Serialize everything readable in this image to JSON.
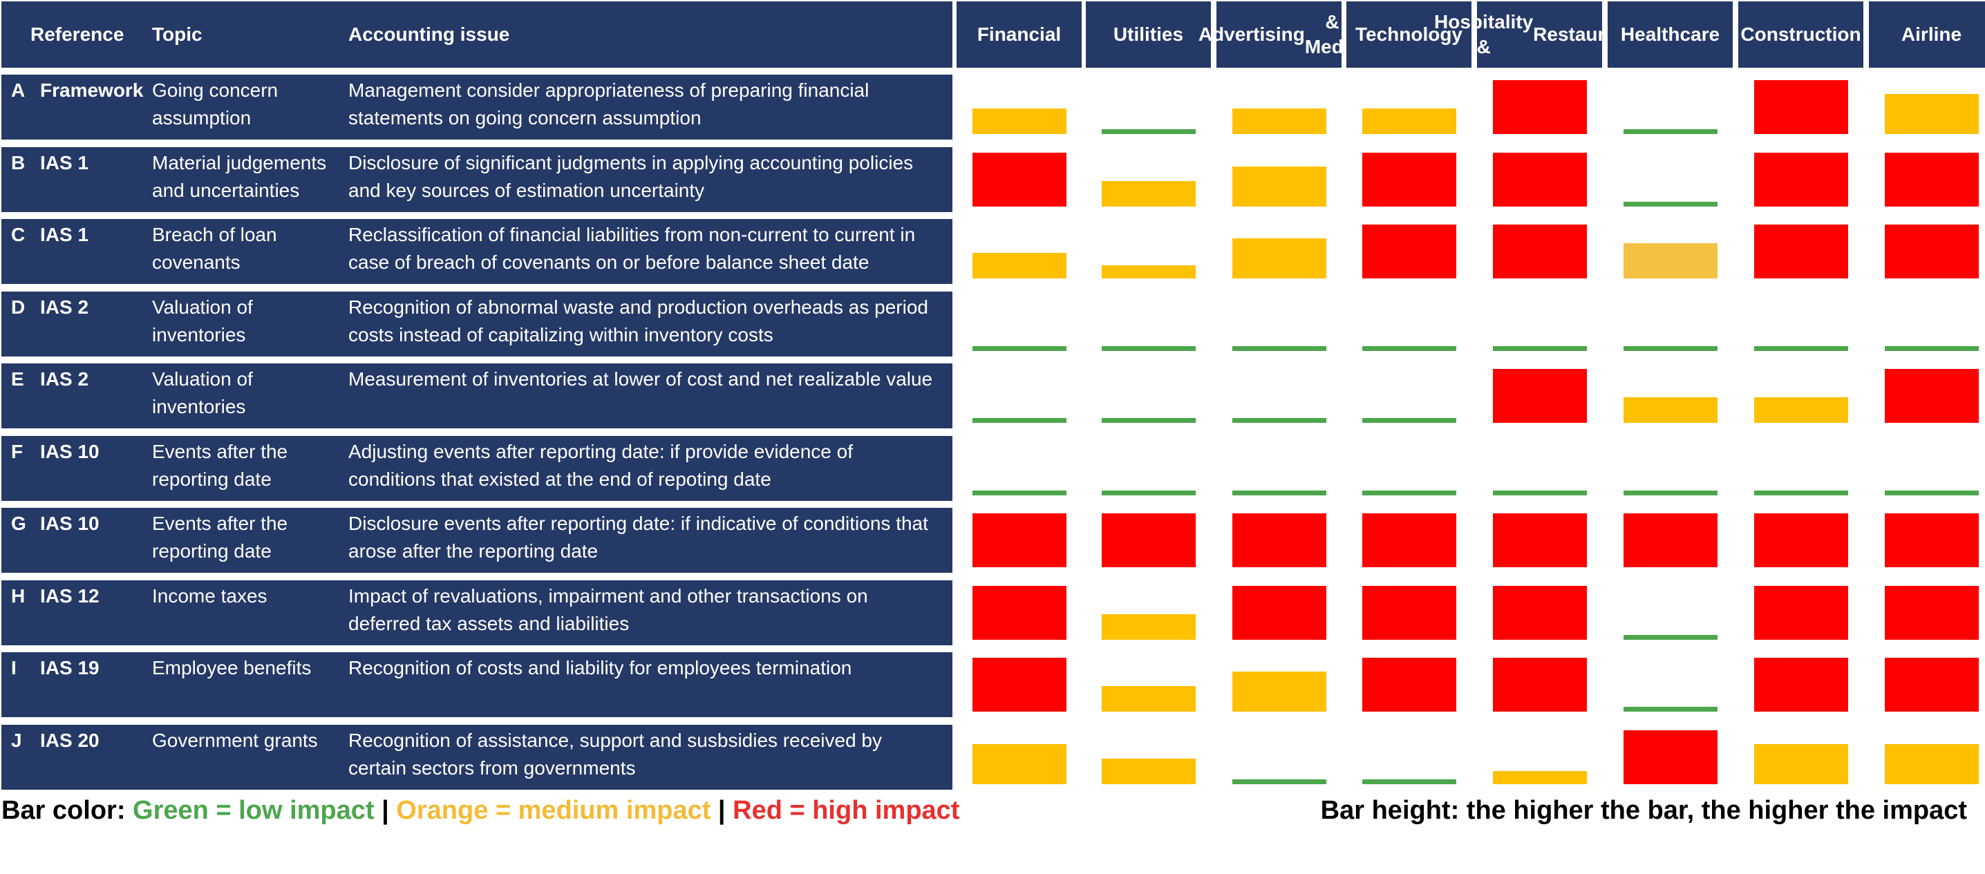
{
  "colors": {
    "header_bg": "#253966",
    "low": "#4CA64C",
    "medium": "#FFC000",
    "medium_light": "#F4C142",
    "high": "#FF0000",
    "legend_low": "#4CA64C",
    "legend_medium": "#F4BB37",
    "legend_high": "#E8302E"
  },
  "table": {
    "headers": {
      "reference": "Reference",
      "topic": "Topic",
      "issue": "Accounting issue"
    },
    "rows": [
      {
        "letter": "A",
        "standard": "Framework",
        "topic": "Going concern assumption",
        "issue": "Management consider appropriateness of preparing financial statements on going concern assumption"
      },
      {
        "letter": "B",
        "standard": "IAS 1",
        "topic": "Material judgements and uncertainties",
        "issue": "Disclosure of significant judgments in applying accounting policies and key sources of estimation uncertainty"
      },
      {
        "letter": "C",
        "standard": "IAS 1",
        "topic": "Breach of loan covenants",
        "issue": "Reclassification of financial liabilities from non-current to current in case of breach of covenants on or before balance sheet date"
      },
      {
        "letter": "D",
        "standard": "IAS 2",
        "topic": "Valuation of inventories",
        "issue": "Recognition of abnormal waste and production overheads as period costs instead of capitalizing within inventory costs"
      },
      {
        "letter": "E",
        "standard": "IAS 2",
        "topic": "Valuation of inventories",
        "issue": "Measurement of inventories at lower of cost and net realizable value"
      },
      {
        "letter": "F",
        "standard": "IAS 10",
        "topic": "Events after the reporting date",
        "issue": "Adjusting events after reporting date: if provide evidence of conditions that existed at the end of repoting date"
      },
      {
        "letter": "G",
        "standard": "IAS 10",
        "topic": "Events after the reporting date",
        "issue": "Disclosure events after reporting date: if indicative of conditions that arose after the reporting date"
      },
      {
        "letter": "H",
        "standard": "IAS 12",
        "topic": "Income taxes",
        "issue": "Impact of revaluations, impairment and other transactions on deferred tax assets and liabilities"
      },
      {
        "letter": "I",
        "standard": "IAS 19",
        "topic": "Employee benefits",
        "issue": "Recognition of costs and liability for employees termination"
      },
      {
        "letter": "J",
        "standard": "IAS 20",
        "topic": "Government grants",
        "issue": "Recognition of assistance, support and susbsidies received by certain sectors from governments"
      }
    ]
  },
  "legend": {
    "color_prefix": "Bar color: ",
    "low": "Green = low impact",
    "sep": " | ",
    "medium": "Orange = medium impact",
    "high": "Red = high impact",
    "height_note": "Bar height: the higher the bar, the higher the impact"
  },
  "chart_data": {
    "type": "heatmap",
    "title": "",
    "value_scale": "bar height as fraction of maximum impact (0-1)",
    "industries": [
      "Financial",
      "Utilities",
      "Advertising & Media",
      "Technology",
      "Hospitality & Restaurants",
      "Healthcare",
      "Construction",
      "Airline"
    ],
    "industry_label_lines": [
      [
        "Financial"
      ],
      [
        "Utilities"
      ],
      [
        "Advertising",
        "& Media"
      ],
      [
        "Technology"
      ],
      [
        "Hospitality &",
        "Restaurants"
      ],
      [
        "Healthcare"
      ],
      [
        "Construction"
      ],
      [
        "Airline"
      ]
    ],
    "rows": [
      "A",
      "B",
      "C",
      "D",
      "E",
      "F",
      "G",
      "H",
      "I",
      "J"
    ],
    "impact": [
      [
        "medium",
        "low",
        "medium",
        "medium",
        "high",
        "low",
        "high",
        "medium"
      ],
      [
        "high",
        "medium",
        "medium",
        "high",
        "high",
        "low",
        "high",
        "high"
      ],
      [
        "medium",
        "medium",
        "medium",
        "high",
        "high",
        "medium",
        "high",
        "high"
      ],
      [
        "low",
        "low",
        "low",
        "low",
        "low",
        "low",
        "low",
        "low"
      ],
      [
        "low",
        "low",
        "low",
        "low",
        "high",
        "medium",
        "medium",
        "high"
      ],
      [
        "low",
        "low",
        "low",
        "low",
        "low",
        "low",
        "low",
        "low"
      ],
      [
        "high",
        "high",
        "high",
        "high",
        "high",
        "high",
        "high",
        "high"
      ],
      [
        "high",
        "medium",
        "high",
        "high",
        "high",
        "low",
        "high",
        "high"
      ],
      [
        "high",
        "medium",
        "medium",
        "high",
        "high",
        "low",
        "high",
        "high"
      ],
      [
        "medium",
        "medium",
        "low",
        "low",
        "medium",
        "high",
        "medium",
        "medium"
      ]
    ],
    "heights": [
      [
        0.47,
        0.09,
        0.47,
        0.47,
        1.0,
        0.09,
        1.0,
        0.74
      ],
      [
        1.0,
        0.47,
        0.74,
        1.0,
        1.0,
        0.09,
        1.0,
        1.0
      ],
      [
        0.47,
        0.24,
        0.74,
        1.0,
        1.0,
        0.65,
        1.0,
        1.0
      ],
      [
        0.09,
        0.09,
        0.09,
        0.09,
        0.09,
        0.09,
        0.09,
        0.09
      ],
      [
        0.09,
        0.09,
        0.09,
        0.09,
        1.0,
        0.47,
        0.47,
        1.0
      ],
      [
        0.09,
        0.09,
        0.09,
        0.09,
        0.09,
        0.09,
        0.09,
        0.09
      ],
      [
        1.0,
        1.0,
        1.0,
        1.0,
        1.0,
        1.0,
        1.0,
        1.0
      ],
      [
        1.0,
        0.47,
        1.0,
        1.0,
        1.0,
        0.09,
        1.0,
        1.0
      ],
      [
        1.0,
        0.47,
        0.74,
        1.0,
        1.0,
        0.09,
        1.0,
        1.0
      ],
      [
        0.74,
        0.47,
        0.09,
        0.09,
        0.24,
        1.0,
        0.74,
        0.74
      ]
    ]
  }
}
